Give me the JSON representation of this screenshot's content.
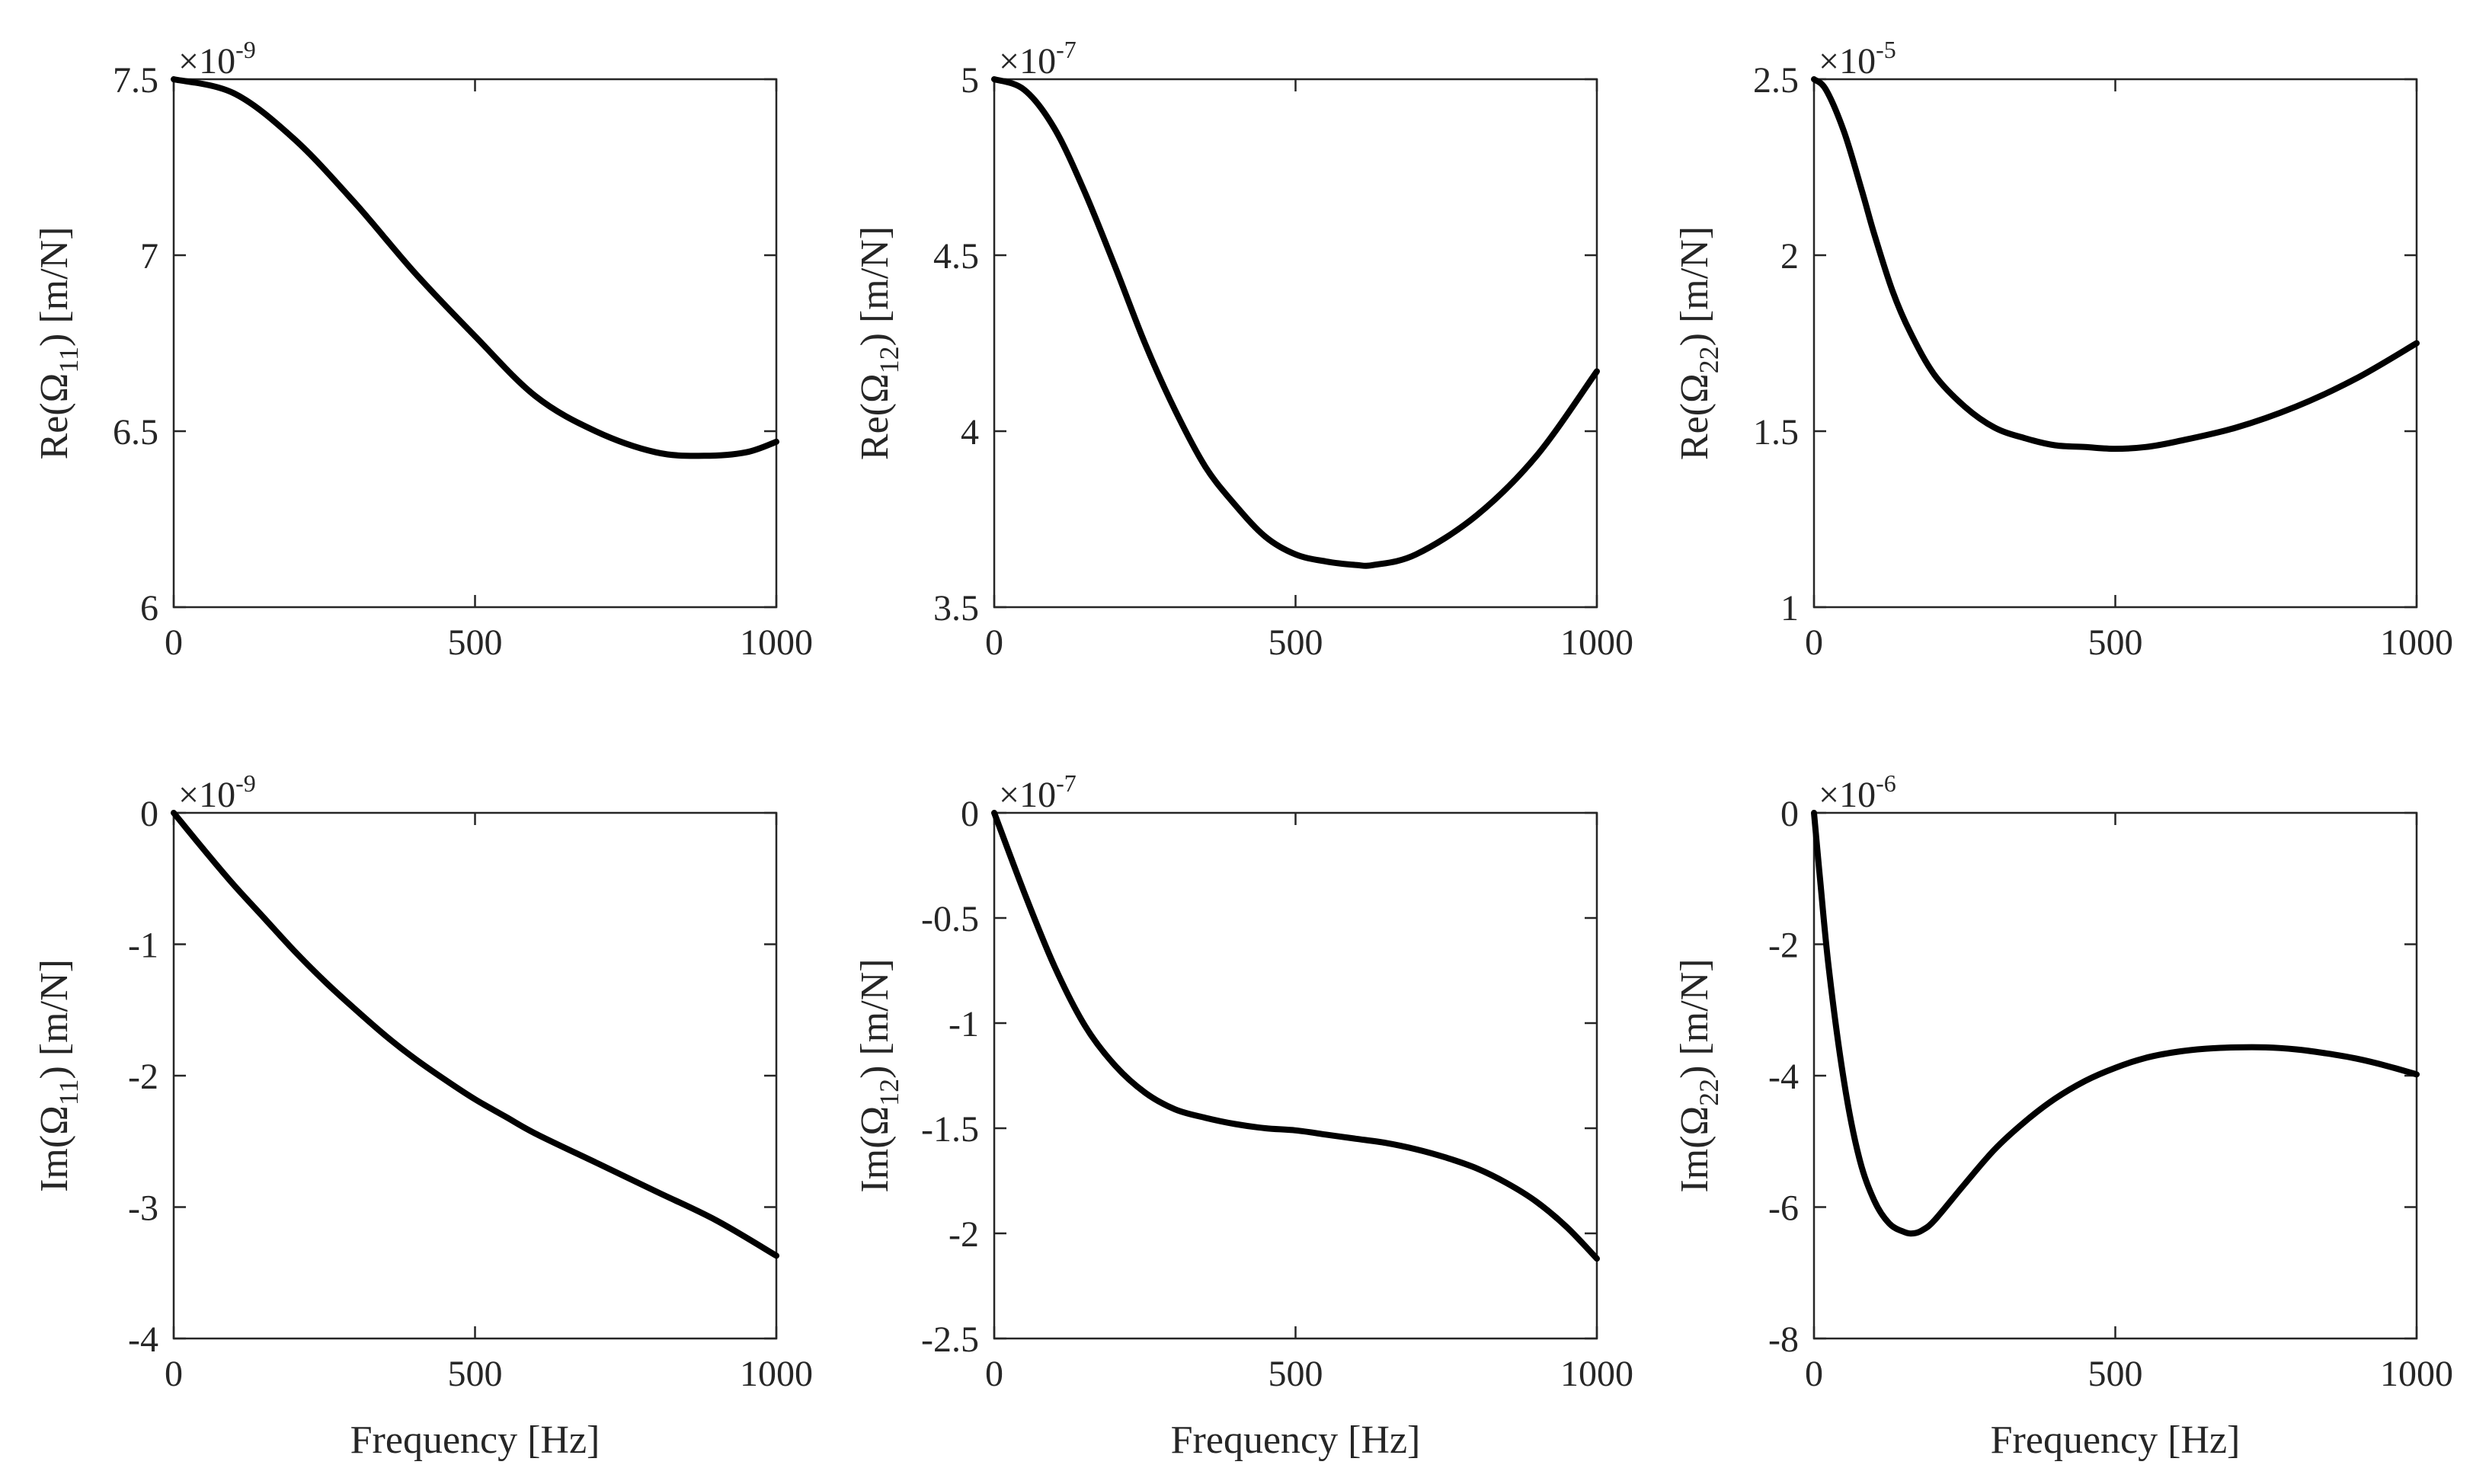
{
  "chart_data": [
    {
      "id": "re11",
      "type": "line",
      "ylabel": {
        "prefix": "Re(Ω",
        "sub": "11",
        "suffix": ") [m/N]"
      },
      "xlabel": "",
      "exponent": {
        "base": "×10",
        "power": "-9"
      },
      "xlim": [
        0,
        1000
      ],
      "ylim": [
        6,
        7.5
      ],
      "xticks": [
        0,
        500,
        1000
      ],
      "xtick_labels": [
        "0",
        "500",
        "1000"
      ],
      "yticks": [
        6,
        6.5,
        7,
        7.5
      ],
      "ytick_labels": [
        "6",
        "6.5",
        "7",
        "7.5"
      ],
      "series": [
        {
          "name": "Re(Ω11)",
          "x": [
            0,
            100,
            200,
            300,
            400,
            500,
            600,
            700,
            800,
            880,
            950,
            1000
          ],
          "y": [
            7.5,
            7.46,
            7.33,
            7.15,
            6.95,
            6.77,
            6.6,
            6.5,
            6.44,
            6.43,
            6.44,
            6.47
          ]
        }
      ]
    },
    {
      "id": "re12",
      "type": "line",
      "ylabel": {
        "prefix": "Re(Ω",
        "sub": "12",
        "suffix": ") [m/N]"
      },
      "xlabel": "",
      "exponent": {
        "base": "×10",
        "power": "-7"
      },
      "xlim": [
        0,
        1000
      ],
      "ylim": [
        3.5,
        5
      ],
      "xticks": [
        0,
        500,
        1000
      ],
      "xtick_labels": [
        "0",
        "500",
        "1000"
      ],
      "yticks": [
        3.5,
        4,
        4.5,
        5
      ],
      "ytick_labels": [
        "3.5",
        "4",
        "4.5",
        "5"
      ],
      "series": [
        {
          "name": "Re(Ω12)",
          "x": [
            0,
            50,
            100,
            150,
            200,
            250,
            300,
            350,
            400,
            450,
            500,
            550,
            600,
            630,
            700,
            800,
            900,
            1000
          ],
          "y": [
            5.0,
            4.97,
            4.86,
            4.68,
            4.47,
            4.25,
            4.06,
            3.9,
            3.79,
            3.7,
            3.65,
            3.63,
            3.62,
            3.62,
            3.65,
            3.76,
            3.93,
            4.17
          ]
        }
      ]
    },
    {
      "id": "re22",
      "type": "line",
      "ylabel": {
        "prefix": "Re(Ω",
        "sub": "22",
        "suffix": ") [m/N]"
      },
      "xlabel": "",
      "exponent": {
        "base": "×10",
        "power": "-5"
      },
      "xlim": [
        0,
        1000
      ],
      "ylim": [
        1,
        2.5
      ],
      "xticks": [
        0,
        500,
        1000
      ],
      "xtick_labels": [
        "0",
        "500",
        "1000"
      ],
      "yticks": [
        1,
        1.5,
        2,
        2.5
      ],
      "ytick_labels": [
        "1",
        "1.5",
        "2",
        "2.5"
      ],
      "series": [
        {
          "name": "Re(Ω22)",
          "x": [
            0,
            20,
            50,
            80,
            100,
            130,
            160,
            200,
            250,
            300,
            350,
            400,
            450,
            500,
            550,
            600,
            700,
            800,
            900,
            1000
          ],
          "y": [
            2.5,
            2.47,
            2.35,
            2.18,
            2.06,
            1.9,
            1.78,
            1.66,
            1.57,
            1.51,
            1.48,
            1.46,
            1.455,
            1.45,
            1.455,
            1.47,
            1.51,
            1.57,
            1.65,
            1.75
          ]
        }
      ]
    },
    {
      "id": "im11",
      "type": "line",
      "ylabel": {
        "prefix": "Im(Ω",
        "sub": "11",
        "suffix": ") [m/N]"
      },
      "xlabel": "Frequency [Hz]",
      "exponent": {
        "base": "×10",
        "power": "-9"
      },
      "xlim": [
        0,
        1000
      ],
      "ylim": [
        -4,
        0
      ],
      "xticks": [
        0,
        500,
        1000
      ],
      "xtick_labels": [
        "0",
        "500",
        "1000"
      ],
      "yticks": [
        -4,
        -3,
        -2,
        -1,
        0
      ],
      "ytick_labels": [
        "-4",
        "-3",
        "-2",
        "-1",
        "0"
      ],
      "series": [
        {
          "name": "Im(Ω11)",
          "x": [
            0,
            50,
            100,
            150,
            200,
            250,
            300,
            350,
            400,
            450,
            500,
            550,
            600,
            700,
            800,
            900,
            1000
          ],
          "y": [
            0,
            -0.28,
            -0.55,
            -0.8,
            -1.05,
            -1.28,
            -1.49,
            -1.69,
            -1.87,
            -2.03,
            -2.18,
            -2.31,
            -2.44,
            -2.66,
            -2.88,
            -3.1,
            -3.37
          ]
        }
      ]
    },
    {
      "id": "im12",
      "type": "line",
      "ylabel": {
        "prefix": "Im(Ω",
        "sub": "12",
        "suffix": ") [m/N]"
      },
      "xlabel": "Frequency [Hz]",
      "exponent": {
        "base": "×10",
        "power": "-7"
      },
      "xlim": [
        0,
        1000
      ],
      "ylim": [
        -2.5,
        0
      ],
      "xticks": [
        0,
        500,
        1000
      ],
      "xtick_labels": [
        "0",
        "500",
        "1000"
      ],
      "yticks": [
        -2.5,
        -2,
        -1.5,
        -1,
        -0.5,
        0
      ],
      "ytick_labels": [
        "-2.5",
        "-2",
        "-1.5",
        "-1",
        "-0.5",
        "0"
      ],
      "series": [
        {
          "name": "Im(Ω12)",
          "x": [
            0,
            50,
            100,
            150,
            200,
            250,
            300,
            350,
            400,
            450,
            500,
            550,
            600,
            650,
            700,
            750,
            800,
            850,
            900,
            950,
            1000
          ],
          "y": [
            0,
            -0.38,
            -0.73,
            -1.01,
            -1.2,
            -1.33,
            -1.41,
            -1.45,
            -1.48,
            -1.5,
            -1.51,
            -1.53,
            -1.55,
            -1.57,
            -1.6,
            -1.64,
            -1.69,
            -1.76,
            -1.85,
            -1.97,
            -2.12
          ]
        }
      ]
    },
    {
      "id": "im22",
      "type": "line",
      "ylabel": {
        "prefix": "Im(Ω",
        "sub": "22",
        "suffix": ") [m/N]"
      },
      "xlabel": "Frequency [Hz]",
      "exponent": {
        "base": "×10",
        "power": "-6"
      },
      "xlim": [
        0,
        1000
      ],
      "ylim": [
        -8,
        0
      ],
      "xticks": [
        0,
        500,
        1000
      ],
      "xtick_labels": [
        "0",
        "500",
        "1000"
      ],
      "yticks": [
        -8,
        -6,
        -4,
        -2,
        0
      ],
      "ytick_labels": [
        "-8",
        "-6",
        "-4",
        "-2",
        "0"
      ],
      "series": [
        {
          "name": "Im(Ω22)",
          "x": [
            0,
            10,
            25,
            50,
            75,
            100,
            125,
            150,
            165,
            180,
            200,
            250,
            300,
            350,
            400,
            450,
            500,
            550,
            600,
            650,
            700,
            750,
            800,
            850,
            900,
            950,
            1000
          ],
          "y": [
            0,
            -1.0,
            -2.4,
            -4.1,
            -5.25,
            -5.9,
            -6.25,
            -6.38,
            -6.4,
            -6.35,
            -6.2,
            -5.65,
            -5.12,
            -4.7,
            -4.35,
            -4.08,
            -3.88,
            -3.73,
            -3.64,
            -3.59,
            -3.57,
            -3.57,
            -3.6,
            -3.66,
            -3.74,
            -3.85,
            -3.98
          ]
        }
      ]
    }
  ]
}
